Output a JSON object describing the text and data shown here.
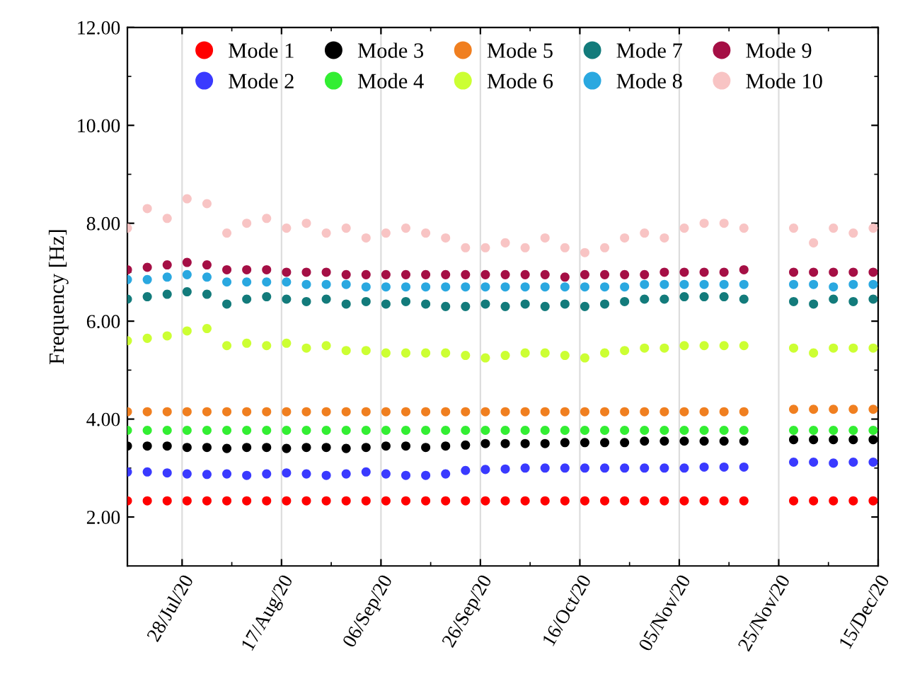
{
  "chart_data": {
    "type": "scatter",
    "ylabel": "Frequency [Hz]",
    "marker": "circle",
    "grid": "x",
    "legend": "top",
    "xlim": [
      "2020-07-17",
      "2020-12-15"
    ],
    "ylim": [
      1,
      12
    ],
    "xticks": [
      {
        "value": "2020-07-28",
        "label": "28/Jul/20"
      },
      {
        "value": "2020-08-17",
        "label": "17/Aug/20"
      },
      {
        "value": "2020-09-06",
        "label": "06/Sep/20"
      },
      {
        "value": "2020-09-26",
        "label": "26/Sep/20"
      },
      {
        "value": "2020-10-16",
        "label": "16/Oct/20"
      },
      {
        "value": "2020-11-05",
        "label": "05/Nov/20"
      },
      {
        "value": "2020-11-25",
        "label": "25/Nov/20"
      },
      {
        "value": "2020-12-15",
        "label": "15/Dec/20"
      }
    ],
    "yticks": [
      {
        "value": 2,
        "label": "2.00"
      },
      {
        "value": 4,
        "label": "4.00"
      },
      {
        "value": 6,
        "label": "6.00"
      },
      {
        "value": 8,
        "label": "8.00"
      },
      {
        "value": 10,
        "label": "10.00"
      },
      {
        "value": 12,
        "label": "12.00"
      }
    ],
    "x": [
      "2020-07-17",
      "2020-07-21",
      "2020-07-25",
      "2020-07-29",
      "2020-08-02",
      "2020-08-06",
      "2020-08-10",
      "2020-08-14",
      "2020-08-18",
      "2020-08-22",
      "2020-08-26",
      "2020-08-30",
      "2020-09-03",
      "2020-09-07",
      "2020-09-11",
      "2020-09-15",
      "2020-09-19",
      "2020-09-23",
      "2020-09-27",
      "2020-10-01",
      "2020-10-05",
      "2020-10-09",
      "2020-10-13",
      "2020-10-17",
      "2020-10-21",
      "2020-10-25",
      "2020-10-29",
      "2020-11-02",
      "2020-11-06",
      "2020-11-10",
      "2020-11-14",
      "2020-11-18",
      "2020-11-28",
      "2020-12-02",
      "2020-12-06",
      "2020-12-10",
      "2020-12-14"
    ],
    "series": [
      {
        "name": "Mode 1",
        "color": "#ff0000",
        "values": [
          2.33,
          2.33,
          2.33,
          2.33,
          2.33,
          2.33,
          2.33,
          2.33,
          2.33,
          2.33,
          2.33,
          2.33,
          2.33,
          2.33,
          2.33,
          2.33,
          2.33,
          2.33,
          2.33,
          2.33,
          2.33,
          2.33,
          2.33,
          2.33,
          2.33,
          2.33,
          2.33,
          2.33,
          2.33,
          2.33,
          2.33,
          2.33,
          2.33,
          2.33,
          2.33,
          2.33,
          2.33
        ]
      },
      {
        "name": "Mode 2",
        "color": "#3a3aff",
        "values": [
          2.92,
          2.92,
          2.9,
          2.88,
          2.87,
          2.88,
          2.85,
          2.88,
          2.9,
          2.88,
          2.85,
          2.88,
          2.92,
          2.88,
          2.85,
          2.85,
          2.88,
          2.95,
          2.97,
          2.98,
          3.0,
          3.0,
          3.0,
          3.0,
          3.0,
          3.0,
          3.0,
          3.0,
          3.0,
          3.02,
          3.02,
          3.02,
          3.12,
          3.12,
          3.1,
          3.12,
          3.12
        ]
      },
      {
        "name": "Mode 3",
        "color": "#000000",
        "values": [
          3.45,
          3.45,
          3.45,
          3.42,
          3.42,
          3.4,
          3.42,
          3.42,
          3.4,
          3.42,
          3.42,
          3.4,
          3.42,
          3.45,
          3.45,
          3.42,
          3.45,
          3.47,
          3.5,
          3.5,
          3.5,
          3.5,
          3.52,
          3.52,
          3.52,
          3.52,
          3.55,
          3.55,
          3.55,
          3.55,
          3.55,
          3.55,
          3.58,
          3.58,
          3.58,
          3.58,
          3.58
        ]
      },
      {
        "name": "Mode 4",
        "color": "#33ee33",
        "values": [
          3.77,
          3.77,
          3.77,
          3.77,
          3.77,
          3.77,
          3.77,
          3.77,
          3.77,
          3.77,
          3.77,
          3.77,
          3.77,
          3.77,
          3.77,
          3.77,
          3.77,
          3.77,
          3.77,
          3.77,
          3.77,
          3.77,
          3.77,
          3.77,
          3.77,
          3.77,
          3.77,
          3.77,
          3.77,
          3.77,
          3.77,
          3.77,
          3.77,
          3.77,
          3.77,
          3.77,
          3.77
        ]
      },
      {
        "name": "Mode 5",
        "color": "#f07f20",
        "values": [
          4.15,
          4.15,
          4.15,
          4.15,
          4.15,
          4.15,
          4.15,
          4.15,
          4.15,
          4.15,
          4.15,
          4.15,
          4.15,
          4.15,
          4.15,
          4.15,
          4.15,
          4.15,
          4.15,
          4.15,
          4.15,
          4.15,
          4.15,
          4.15,
          4.15,
          4.15,
          4.15,
          4.15,
          4.15,
          4.15,
          4.15,
          4.15,
          4.2,
          4.2,
          4.2,
          4.2,
          4.2
        ]
      },
      {
        "name": "Mode 6",
        "color": "#ccff33",
        "values": [
          5.6,
          5.65,
          5.7,
          5.8,
          5.85,
          5.5,
          5.55,
          5.5,
          5.55,
          5.45,
          5.5,
          5.4,
          5.4,
          5.35,
          5.35,
          5.35,
          5.35,
          5.3,
          5.25,
          5.3,
          5.35,
          5.35,
          5.3,
          5.25,
          5.35,
          5.4,
          5.45,
          5.45,
          5.5,
          5.5,
          5.5,
          5.5,
          5.45,
          5.35,
          5.45,
          5.45,
          5.45
        ]
      },
      {
        "name": "Mode 7",
        "color": "#137b7b",
        "values": [
          6.45,
          6.5,
          6.55,
          6.6,
          6.55,
          6.35,
          6.45,
          6.5,
          6.45,
          6.4,
          6.45,
          6.35,
          6.4,
          6.35,
          6.4,
          6.35,
          6.3,
          6.3,
          6.35,
          6.3,
          6.35,
          6.3,
          6.35,
          6.3,
          6.35,
          6.4,
          6.45,
          6.45,
          6.5,
          6.5,
          6.5,
          6.45,
          6.4,
          6.35,
          6.45,
          6.4,
          6.45
        ]
      },
      {
        "name": "Mode 8",
        "color": "#2aa8e0",
        "values": [
          6.85,
          6.85,
          6.9,
          6.95,
          6.9,
          6.8,
          6.8,
          6.8,
          6.8,
          6.75,
          6.75,
          6.75,
          6.7,
          6.7,
          6.7,
          6.7,
          6.7,
          6.7,
          6.7,
          6.7,
          6.7,
          6.7,
          6.7,
          6.7,
          6.7,
          6.7,
          6.75,
          6.75,
          6.75,
          6.75,
          6.75,
          6.75,
          6.75,
          6.75,
          6.7,
          6.75,
          6.75
        ]
      },
      {
        "name": "Mode 9",
        "color": "#a50f45",
        "values": [
          7.05,
          7.1,
          7.15,
          7.2,
          7.15,
          7.05,
          7.05,
          7.05,
          7.0,
          7.0,
          7.0,
          6.95,
          6.95,
          6.95,
          6.95,
          6.95,
          6.95,
          6.95,
          6.95,
          6.95,
          6.95,
          6.95,
          6.9,
          6.95,
          6.95,
          6.95,
          6.95,
          7.0,
          7.0,
          7.0,
          7.0,
          7.05,
          7.0,
          7.0,
          7.0,
          7.0,
          7.0
        ]
      },
      {
        "name": "Mode 10",
        "color": "#f8c4c4",
        "values": [
          7.9,
          8.3,
          8.1,
          8.5,
          8.4,
          7.8,
          8.0,
          8.1,
          7.9,
          8.0,
          7.8,
          7.9,
          7.7,
          7.8,
          7.9,
          7.8,
          7.7,
          7.5,
          7.5,
          7.6,
          7.5,
          7.7,
          7.5,
          7.4,
          7.5,
          7.7,
          7.8,
          7.7,
          7.9,
          8.0,
          8.0,
          7.9,
          7.9,
          7.6,
          7.9,
          7.8,
          7.9
        ]
      }
    ]
  }
}
